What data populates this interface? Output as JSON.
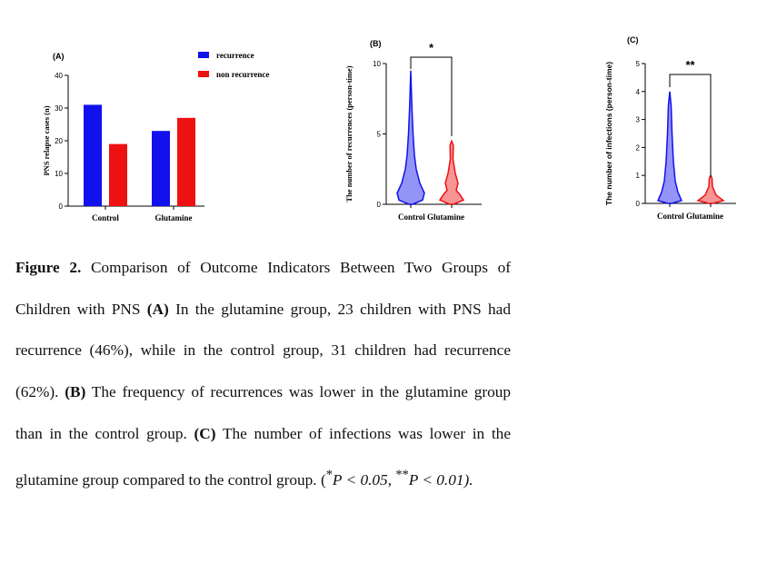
{
  "chart_data": [
    {
      "type": "bar",
      "panel_label": "(A)",
      "categories": [
        "Control",
        "Glutamine"
      ],
      "series": [
        {
          "name": "recurrence",
          "color": "#1111ee",
          "values": [
            31,
            23
          ]
        },
        {
          "name": "non recurrence",
          "color": "#ee1111",
          "values": [
            19,
            27
          ]
        }
      ],
      "ylabel": "PNS relapse cases (n)",
      "ylim": [
        0,
        40
      ],
      "yticks": [
        0,
        10,
        20,
        30,
        40
      ],
      "legend": "top-right",
      "grid": false
    },
    {
      "type": "violin",
      "panel_label": "(B)",
      "categories": [
        "Control",
        "Glutamine"
      ],
      "colors": [
        "#1111ee",
        "#ee1111"
      ],
      "ylabel": "The number of recurrences (person-time)",
      "ylim": [
        0,
        10
      ],
      "yticks": [
        0,
        5,
        10
      ],
      "ranges": [
        [
          0,
          9.5
        ],
        [
          0,
          4.5
        ]
      ],
      "significance": "*"
    },
    {
      "type": "violin",
      "panel_label": "(C)",
      "categories": [
        "Control",
        "Glutamine"
      ],
      "colors": [
        "#1111ee",
        "#ee1111"
      ],
      "ylabel": "The number of infections (person-time)",
      "ylim": [
        0,
        5
      ],
      "yticks": [
        0,
        1,
        2,
        3,
        4,
        5
      ],
      "ranges": [
        [
          0,
          4
        ],
        [
          0,
          1
        ]
      ],
      "significance": "**"
    }
  ],
  "caption": {
    "fig_label": "Figure 2.",
    "title": " Comparison of Outcome Indicators Between Two Groups of Children with PNS ",
    "a_label": "(A)",
    "a_text": " In the glutamine group, 23 children with PNS had recurrence (46%), while in the control group, 31 children had recurrence (62%). ",
    "b_label": "(B)",
    "b_text": " The frequency of recurrences was lower in the glutamine group than in the control group. ",
    "c_label": "(C)",
    "c_text": " The number of infections was lower in the glutamine group compared to the control group. (",
    "p1_sup": "*",
    "p1_text": "P < 0.05, ",
    "p2_sup": "**",
    "p2_text": "P < 0.01)."
  }
}
